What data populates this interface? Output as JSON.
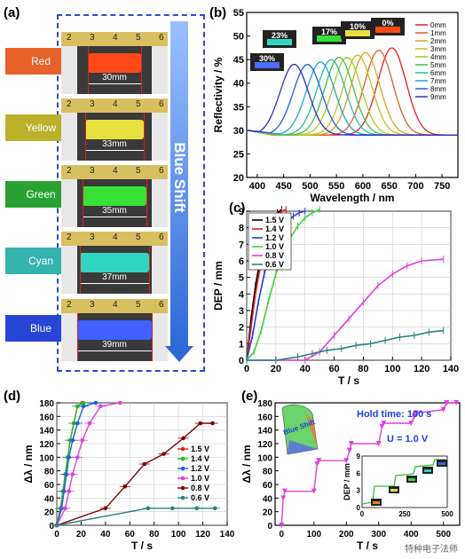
{
  "panel_a": {
    "label": "(a)",
    "rows": [
      {
        "name": "Red",
        "color": "#e8612a",
        "width_label": "30mm",
        "band": "#ff4a18"
      },
      {
        "name": "Yellow",
        "color": "#b9b22a",
        "width_label": "33mm",
        "band": "#e8e040"
      },
      {
        "name": "Green",
        "color": "#2aa233",
        "width_label": "35mm",
        "band": "#38e038"
      },
      {
        "name": "Cyan",
        "color": "#36b2ad",
        "width_label": "37mm",
        "band": "#30d6c2"
      },
      {
        "name": "Blue",
        "color": "#2846d6",
        "width_label": "39mm",
        "band": "#4060ff"
      }
    ],
    "ruler_ticks": [
      "2",
      "3",
      "4",
      "5",
      "6"
    ],
    "arrow_text": "Blue Shift"
  },
  "panel_b": {
    "label": "(b)",
    "xlabel": "Wavelength / nm",
    "ylabel": "Reflectivity / %",
    "inset_labels": [
      "30%",
      "23%",
      "17%",
      "10%",
      "0%"
    ],
    "legend": [
      "0mm",
      "1mm",
      "2mm",
      "3mm",
      "4mm",
      "5mm",
      "6mm",
      "7mm",
      "8mm",
      "9mm"
    ],
    "legend_colors": [
      "#e02020",
      "#e06020",
      "#e0a020",
      "#c8c020",
      "#a0d020",
      "#40c040",
      "#20c0a0",
      "#20a0d0",
      "#2060e0",
      "#3030c0"
    ],
    "xticks": [
      "400",
      "450",
      "500",
      "550",
      "600",
      "650",
      "700",
      "750"
    ],
    "yticks": [
      "20",
      "25",
      "30",
      "35",
      "40",
      "45",
      "50",
      "55"
    ]
  },
  "panel_c": {
    "label": "(c)",
    "xlabel": "T / s",
    "ylabel": "DEP / mm",
    "xticks": [
      "0",
      "20",
      "40",
      "60",
      "80",
      "100",
      "120",
      "140"
    ],
    "yticks": [
      "0",
      "1",
      "2",
      "3",
      "4",
      "5",
      "6",
      "7",
      "8",
      "9"
    ],
    "legend": [
      "1.5 V",
      "1.4 V",
      "1.2 V",
      "1.0 V",
      "0.8 V",
      "0.6 V"
    ],
    "colors": [
      "#000000",
      "#e02020",
      "#2040e0",
      "#40d040",
      "#e040e0",
      "#2a8080"
    ]
  },
  "panel_d": {
    "label": "(d)",
    "xlabel": "T / s",
    "ylabel": "Δλ / nm",
    "xticks": [
      "0",
      "20",
      "40",
      "60",
      "80",
      "100",
      "120",
      "140"
    ],
    "yticks": [
      "0",
      "20",
      "40",
      "60",
      "80",
      "100",
      "120",
      "140",
      "160",
      "180"
    ],
    "legend": [
      "1.5 V",
      "1.4 V",
      "1.2 V",
      "1.0 V",
      "0.8 V",
      "0.6 V"
    ],
    "colors": [
      "#e02020",
      "#20c020",
      "#2060e0",
      "#e040e0",
      "#800000",
      "#2a8080"
    ]
  },
  "panel_e": {
    "label": "(e)",
    "xlabel": "T / s",
    "ylabel": "Δλ / nm",
    "xticks": [
      "0",
      "100",
      "200",
      "300",
      "400",
      "500"
    ],
    "yticks": [
      "0",
      "20",
      "40",
      "60",
      "80",
      "100",
      "120",
      "140",
      "160",
      "180"
    ],
    "hold_text": "Hold time: 100 s",
    "u_text": "U = 1.0 V",
    "inset_ylabel": "DEP / mm",
    "inset_xticks": [
      "0",
      "250",
      "500"
    ],
    "inset_yticks": [
      "0",
      "3",
      "6",
      "9"
    ],
    "cie_text": "Blue Shift",
    "watermark": "特种电子法师"
  },
  "chart_data": [
    {
      "type": "line",
      "panel": "b",
      "xlabel": "Wavelength / nm",
      "ylabel": "Reflectivity / %",
      "xlim": [
        380,
        780
      ],
      "ylim": [
        20,
        55
      ],
      "series_peaks_nm": [
        655,
        630,
        605,
        590,
        570,
        555,
        540,
        520,
        495,
        470
      ],
      "series_peak_pct": [
        47.5,
        47,
        46.5,
        46,
        45.5,
        45.5,
        45,
        44.5,
        44,
        44
      ],
      "series_names": [
        "0mm",
        "1mm",
        "2mm",
        "3mm",
        "4mm",
        "5mm",
        "6mm",
        "7mm",
        "8mm",
        "9mm"
      ]
    },
    {
      "type": "line",
      "panel": "c",
      "xlabel": "T / s",
      "ylabel": "DEP / mm",
      "xlim": [
        0,
        140
      ],
      "ylim": [
        0,
        9
      ],
      "series": [
        {
          "name": "1.5 V",
          "x": [
            0,
            3,
            6,
            9,
            12,
            15,
            18,
            21,
            24
          ],
          "values": [
            0,
            2.5,
            4.5,
            6,
            7.2,
            8,
            8.6,
            8.9,
            9.1
          ]
        },
        {
          "name": "1.4 V",
          "x": [
            0,
            3,
            6,
            9,
            12,
            15,
            18,
            21,
            24,
            27
          ],
          "values": [
            0,
            2,
            4,
            5.5,
            6.8,
            7.8,
            8.4,
            8.8,
            9,
            9.1
          ]
        },
        {
          "name": "1.2 V",
          "x": [
            0,
            4,
            8,
            12,
            16,
            20,
            24,
            28,
            32,
            36,
            40
          ],
          "values": [
            0,
            1.5,
            3.5,
            5.2,
            6.5,
            7.4,
            8,
            8.4,
            8.7,
            8.9,
            9
          ]
        },
        {
          "name": "1.0 V",
          "x": [
            0,
            5,
            10,
            15,
            20,
            25,
            30,
            35,
            40,
            45,
            50
          ],
          "values": [
            0,
            0.5,
            1.8,
            3.6,
            5.2,
            6.5,
            7.4,
            8.1,
            8.6,
            8.9,
            9.1
          ]
        },
        {
          "name": "0.8 V",
          "x": [
            0,
            20,
            40,
            50,
            60,
            70,
            80,
            90,
            100,
            110,
            120,
            135
          ],
          "values": [
            0,
            0,
            0,
            0.5,
            1.5,
            2.5,
            3.5,
            4.5,
            5.2,
            5.7,
            6,
            6.1
          ]
        },
        {
          "name": "0.6 V",
          "x": [
            0,
            20,
            35,
            45,
            55,
            65,
            75,
            85,
            95,
            105,
            115,
            125,
            135
          ],
          "values": [
            0,
            0,
            0.2,
            0.4,
            0.6,
            0.7,
            0.9,
            1,
            1.2,
            1.4,
            1.5,
            1.7,
            1.8
          ]
        }
      ]
    },
    {
      "type": "line",
      "panel": "d",
      "xlabel": "T / s",
      "ylabel": "Δλ / nm",
      "xlim": [
        0,
        140
      ],
      "ylim": [
        0,
        180
      ],
      "series": [
        {
          "name": "1.5 V",
          "x": [
            0,
            3,
            5,
            7,
            9,
            11,
            14,
            17,
            21
          ],
          "values": [
            0,
            25,
            50,
            75,
            100,
            125,
            150,
            175,
            180
          ]
        },
        {
          "name": "1.4 V",
          "x": [
            0,
            3,
            5,
            7,
            9,
            11,
            14,
            17,
            22
          ],
          "values": [
            0,
            25,
            50,
            75,
            100,
            125,
            150,
            175,
            180
          ]
        },
        {
          "name": "1.2 V",
          "x": [
            0,
            4,
            6,
            8,
            10,
            13,
            17,
            22,
            32
          ],
          "values": [
            0,
            25,
            50,
            75,
            100,
            125,
            150,
            175,
            180
          ]
        },
        {
          "name": "1.0 V",
          "x": [
            0,
            7,
            10,
            13,
            17,
            21,
            27,
            36,
            52
          ],
          "values": [
            0,
            25,
            50,
            75,
            100,
            125,
            150,
            175,
            180
          ]
        },
        {
          "name": "0.8 V",
          "x": [
            0,
            40,
            56,
            72,
            88,
            104,
            118,
            128
          ],
          "values": [
            0,
            25,
            57,
            90,
            105,
            128,
            150,
            150
          ]
        },
        {
          "name": "0.6 V",
          "x": [
            0,
            75,
            95,
            115,
            130
          ],
          "values": [
            0,
            25,
            25,
            25,
            25
          ]
        }
      ]
    },
    {
      "type": "line",
      "panel": "e",
      "xlabel": "T / s",
      "ylabel": "Δλ / nm",
      "xlim": [
        -20,
        550
      ],
      "ylim": [
        0,
        180
      ],
      "series": [
        {
          "name": "steps",
          "x": [
            0,
            5,
            10,
            100,
            110,
            115,
            200,
            210,
            215,
            300,
            310,
            315,
            400,
            410,
            415,
            500,
            510,
            540
          ],
          "values": [
            0,
            40,
            50,
            50,
            90,
            95,
            95,
            110,
            120,
            120,
            145,
            150,
            150,
            160,
            165,
            170,
            180,
            180
          ]
        }
      ]
    }
  ]
}
